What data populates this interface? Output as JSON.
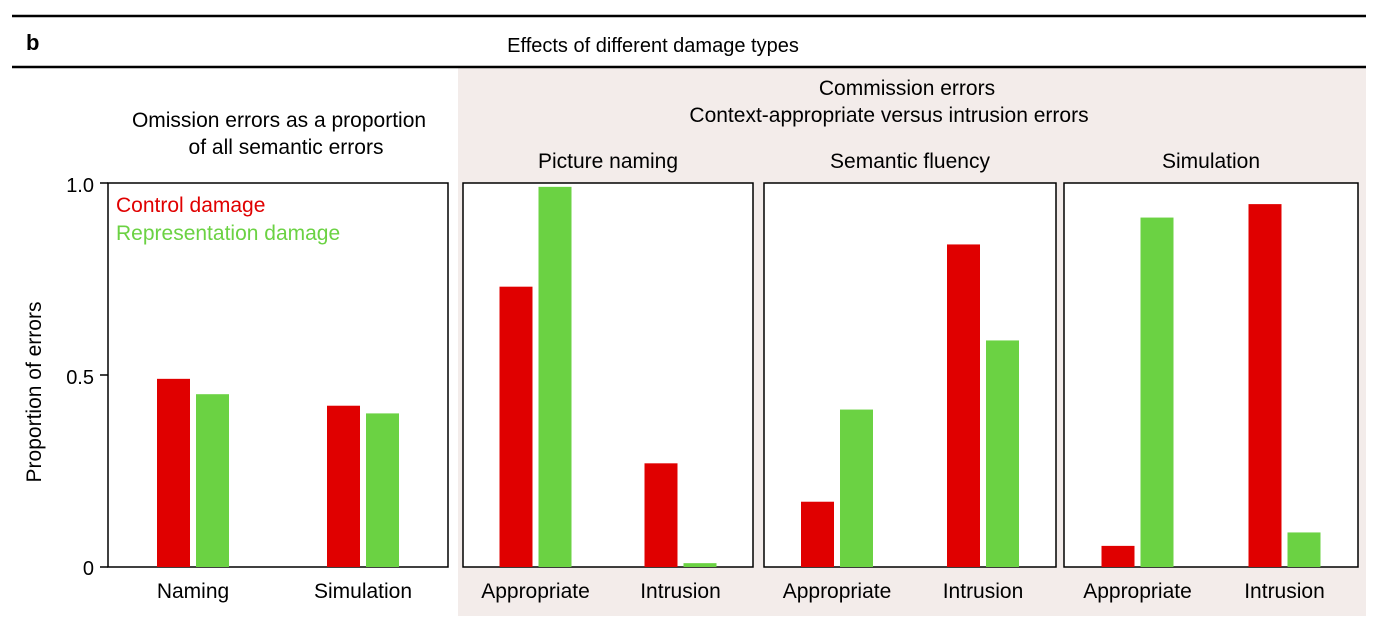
{
  "panel_label": "b",
  "title": "Effects of different damage types",
  "omission_title": [
    "Omission errors as a proportion",
    "of all semantic errors"
  ],
  "commission_title": [
    "Commission errors",
    "Context-appropriate versus intrusion errors"
  ],
  "ylabel": "Proportion of errors",
  "yticks": [
    "1.0",
    "0.5",
    "0"
  ],
  "legend": [
    "Control damage",
    "Representation damage"
  ],
  "colors": {
    "control": "#e00000",
    "representation": "#6bd243",
    "commission_bg": "#f3ecea"
  },
  "chart_data": [
    {
      "type": "bar",
      "title": "",
      "ylabel": "Proportion of errors",
      "ylim": [
        0,
        1
      ],
      "categories": [
        "Naming",
        "Simulation"
      ],
      "series": [
        {
          "name": "Control damage",
          "values": [
            0.49,
            0.42
          ]
        },
        {
          "name": "Representation damage",
          "values": [
            0.45,
            0.4
          ]
        }
      ]
    },
    {
      "type": "bar",
      "title": "Picture naming",
      "ylim": [
        0,
        1
      ],
      "categories": [
        "Appropriate",
        "Intrusion"
      ],
      "series": [
        {
          "name": "Control damage",
          "values": [
            0.73,
            0.27
          ]
        },
        {
          "name": "Representation damage",
          "values": [
            0.99,
            0.01
          ]
        }
      ]
    },
    {
      "type": "bar",
      "title": "Semantic fluency",
      "ylim": [
        0,
        1
      ],
      "categories": [
        "Appropriate",
        "Intrusion"
      ],
      "series": [
        {
          "name": "Control damage",
          "values": [
            0.17,
            0.84
          ]
        },
        {
          "name": "Representation damage",
          "values": [
            0.41,
            0.59
          ]
        }
      ]
    },
    {
      "type": "bar",
      "title": "Simulation",
      "ylim": [
        0,
        1
      ],
      "categories": [
        "Appropriate",
        "Intrusion"
      ],
      "series": [
        {
          "name": "Control damage",
          "values": [
            0.055,
            0.945
          ]
        },
        {
          "name": "Representation damage",
          "values": [
            0.91,
            0.09
          ]
        }
      ]
    }
  ]
}
